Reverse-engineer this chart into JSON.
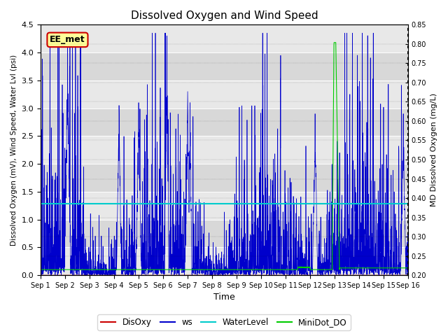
{
  "title": "Dissolved Oxygen and Wind Speed",
  "xlabel": "Time",
  "ylabel_left": "Dissolved Oxygen (mV), Wind Speed, Water Lvl (psi)",
  "ylabel_right": "MD Dissolved Oxygen (mg/L)",
  "ylim_left": [
    0.0,
    4.5
  ],
  "ylim_right": [
    0.2,
    0.85
  ],
  "water_level": 1.28,
  "disoxy_level": 0.0,
  "xtick_labels": [
    "Sep 1",
    "Sep 2",
    "Sep 3",
    "Sep 4",
    "Sep 5",
    "Sep 6",
    "Sep 7",
    "Sep 8",
    "Sep 9",
    "Sep 10",
    "Sep 11",
    "Sep 12",
    "Sep 13",
    "Sep 14",
    "Sep 15",
    "Sep 16"
  ],
  "legend_labels": [
    "DisOxy",
    "ws",
    "WaterLevel",
    "MiniDot_DO"
  ],
  "legend_colors": [
    "#cc0000",
    "#0000cc",
    "#00cccc",
    "#00cc00"
  ],
  "annotation_text": "EE_met",
  "annotation_box_color": "#ffff99",
  "annotation_box_edge": "#cc0000",
  "band_colors": [
    "#e8e8e8",
    "#d8d8d8"
  ],
  "right_ticks": [
    0.2,
    0.25,
    0.3,
    0.35,
    0.4,
    0.45,
    0.5,
    0.55,
    0.6,
    0.65,
    0.7,
    0.75,
    0.8,
    0.85
  ],
  "left_ticks": [
    0.0,
    0.5,
    1.0,
    1.5,
    2.0,
    2.5,
    3.0,
    3.5,
    4.0,
    4.5
  ]
}
